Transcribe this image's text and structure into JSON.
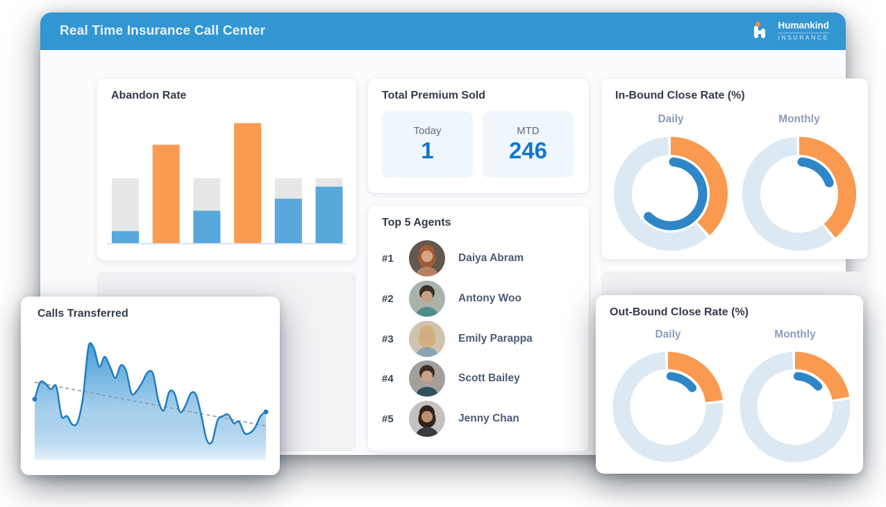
{
  "header": {
    "title": "Real Time Insurance Call Center",
    "brand": {
      "name": "Humankind",
      "tagline": "INSURANCE"
    }
  },
  "colors": {
    "header_bg": "#3296d3",
    "bar_blue": "#58a8dc",
    "bar_orange": "#fb9b52",
    "bar_gray": "#e5e7e8",
    "baseline": "#d9e3f0",
    "donut_track": "#dde9f2",
    "donut_orange": "#f99a50",
    "donut_inner": "#2e86c8",
    "accent_number": "#1277cc",
    "area_line": "#1d7dc4",
    "area_top": "#4199d6",
    "area_bottom": "#e3f0fa",
    "trend": "#8a929b"
  },
  "premium": {
    "title": "Total Premium Sold",
    "tiles": [
      {
        "label": "Today",
        "value": "1"
      },
      {
        "label": "MTD",
        "value": "246"
      }
    ]
  },
  "top_agents": {
    "title": "Top 5 Agents",
    "items": [
      {
        "rank": "#1",
        "name": "Daiya Abram",
        "avatar": {
          "bg": "#62584e",
          "hair": "#a05c36",
          "skin": "#d8a383",
          "shirt": "#b97f63",
          "long": true
        }
      },
      {
        "rank": "#2",
        "name": "Antony Woo",
        "avatar": {
          "bg": "#a9b3aa",
          "hair": "#38302a",
          "skin": "#c9a07f",
          "shirt": "#4f8d8a",
          "long": false
        }
      },
      {
        "rank": "#3",
        "name": "Emily Parappa",
        "avatar": {
          "bg": "#cfc3b0",
          "hair": "#d3b27e",
          "skin": "#d2a885",
          "shirt": "#8ba3b3",
          "long": true
        }
      },
      {
        "rank": "#4",
        "name": "Scott Bailey",
        "avatar": {
          "bg": "#a3a09c",
          "hair": "#3a2d24",
          "skin": "#cda287",
          "shirt": "#31505c",
          "long": false
        }
      },
      {
        "rank": "#5",
        "name": "Jenny Chan",
        "avatar": {
          "bg": "#c4c1be",
          "hair": "#2d241e",
          "skin": "#c08f6e",
          "shirt": "#3a3b3f",
          "long": true
        }
      }
    ]
  },
  "chart_data": [
    {
      "id": "abandon_rate",
      "type": "bar",
      "title": "Abandon Rate",
      "ylim": [
        0,
        100
      ],
      "grid": false,
      "note": "blue bars show value against gray capacity track; orange bars are standalone",
      "bars": [
        {
          "color": "blue",
          "value": 10,
          "track": 54
        },
        {
          "color": "orange",
          "value": 82
        },
        {
          "color": "blue",
          "value": 27,
          "track": 54
        },
        {
          "color": "orange",
          "value": 100
        },
        {
          "color": "blue",
          "value": 37,
          "track": 54
        },
        {
          "color": "blue",
          "value": 47,
          "track": 54
        }
      ]
    },
    {
      "id": "in_bound_close_rate",
      "type": "donut-pair",
      "title": "In-Bound Close Rate (%)",
      "donuts": [
        {
          "label": "Daily",
          "outer_pct": 38,
          "inner_pct": 61
        },
        {
          "label": "Monthly",
          "outer_pct": 39,
          "inner_pct": 18
        }
      ]
    },
    {
      "id": "out_bound_close_rate",
      "type": "donut-pair",
      "title": "Out-Bound Close Rate (%)",
      "donuts": [
        {
          "label": "Daily",
          "outer_pct": 23,
          "inner_pct": 13
        },
        {
          "label": "Monthly",
          "outer_pct": 22,
          "inner_pct": 12
        }
      ]
    },
    {
      "id": "calls_transferred",
      "type": "area",
      "title": "Calls Transferred",
      "ylim": [
        0,
        100
      ],
      "y": [
        43,
        55,
        54,
        50,
        52,
        31,
        31,
        25,
        27,
        45,
        80,
        79,
        66,
        73,
        66,
        58,
        67,
        63,
        47,
        49,
        55,
        62,
        61,
        42,
        35,
        48,
        47,
        34,
        38,
        47,
        46,
        31,
        14,
        13,
        28,
        31,
        32,
        26,
        27,
        19,
        19,
        23,
        31,
        34
      ],
      "trendline": {
        "start": 55,
        "end": 24
      }
    }
  ]
}
